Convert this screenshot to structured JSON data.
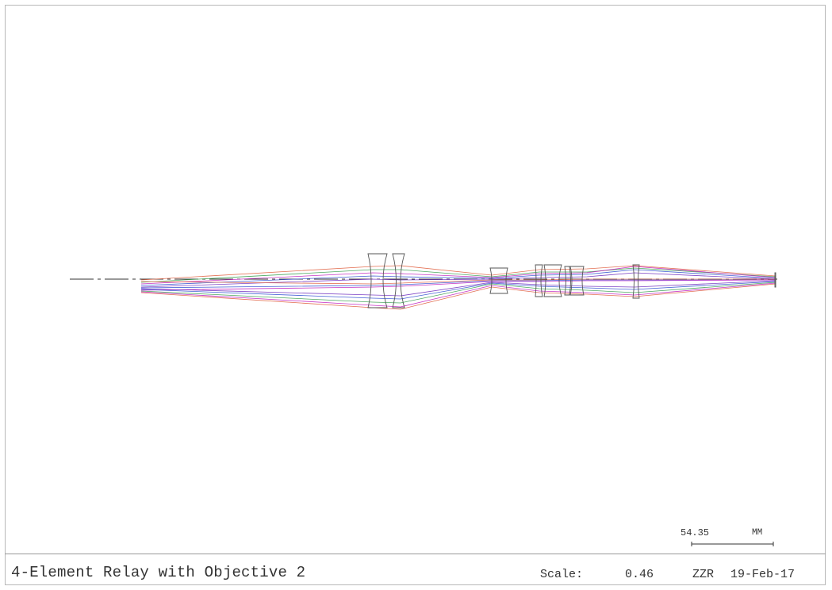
{
  "footer": {
    "title": "4-Element Relay with Objective 2",
    "scale_label": "Scale:",
    "scale_value": "0.46",
    "designer": "ZZR",
    "date": "19-Feb-17"
  },
  "scale_bar": {
    "value": "54.35",
    "unit": "MM"
  },
  "ray_colors": {
    "red": "#e06040",
    "green": "#3aa050",
    "blue": "#3050d0",
    "magenta": "#c020c0",
    "purple": "#7030c0"
  },
  "lens_color": "#555555",
  "axis_color": "#333333"
}
